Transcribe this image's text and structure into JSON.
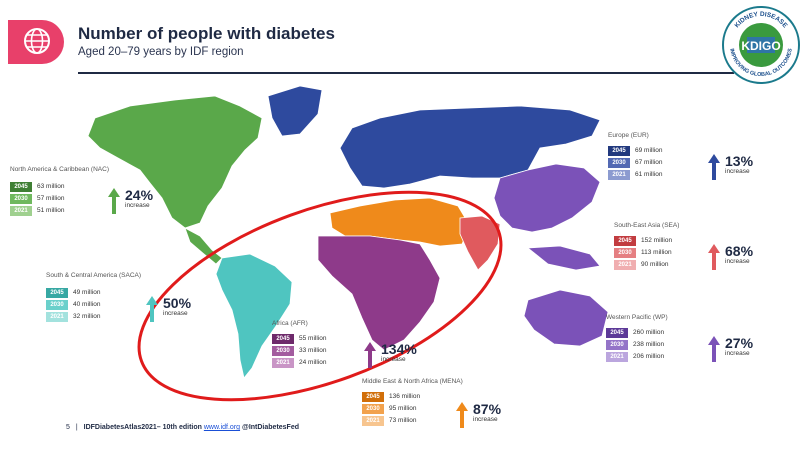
{
  "header": {
    "title": "Number of people with diabetes",
    "subtitle": "Aged 20–79 years by IDF region"
  },
  "logo": {
    "text_top": "KIDNEY DISEASE",
    "text_center": "KDIGO",
    "text_bottom": "IMPROVING GLOBAL OUTCOMES"
  },
  "regions": {
    "nac": {
      "title": "North America & Caribbean (NAC)",
      "rows": [
        [
          "2045",
          "63 million"
        ],
        [
          "2030",
          "57 million"
        ],
        [
          "2021",
          "51 million"
        ]
      ],
      "pct": "24%",
      "inc": "increase",
      "color": "#5aa84a"
    },
    "saca": {
      "title": "South & Central America (SACA)",
      "rows": [
        [
          "2045",
          "49 million"
        ],
        [
          "2030",
          "40 million"
        ],
        [
          "2021",
          "32 million"
        ]
      ],
      "pct": "50%",
      "inc": "increase",
      "color": "#4fc5c0"
    },
    "afr": {
      "title": "Africa (AFR)",
      "rows": [
        [
          "2045",
          "55 million"
        ],
        [
          "2030",
          "33 million"
        ],
        [
          "2021",
          "24 million"
        ]
      ],
      "pct": "134%",
      "inc": "increase",
      "color": "#8e3a8a"
    },
    "mena": {
      "title": "Middle East & North Africa (MENA)",
      "rows": [
        [
          "2045",
          "136 million"
        ],
        [
          "2030",
          "95 million"
        ],
        [
          "2021",
          "73 million"
        ]
      ],
      "pct": "87%",
      "inc": "increase",
      "color": "#ef8a1b"
    },
    "eur": {
      "title": "Europe (EUR)",
      "rows": [
        [
          "2045",
          "69 million"
        ],
        [
          "2030",
          "67 million"
        ],
        [
          "2021",
          "61 million"
        ]
      ],
      "pct": "13%",
      "inc": "increase",
      "color": "#2e4a9e"
    },
    "sea": {
      "title": "South-East Asia (SEA)",
      "rows": [
        [
          "2045",
          "152 million"
        ],
        [
          "2030",
          "113 million"
        ],
        [
          "2021",
          "90 million"
        ]
      ],
      "pct": "68%",
      "inc": "increase",
      "color": "#e05a5e"
    },
    "wp": {
      "title": "Western Pacific (WP)",
      "rows": [
        [
          "2045",
          "260 million"
        ],
        [
          "2030",
          "238 million"
        ],
        [
          "2021",
          "206 million"
        ]
      ],
      "pct": "27%",
      "inc": "increase",
      "color": "#7b52b8"
    }
  },
  "footer": {
    "page": "5",
    "sep": "|",
    "text": "IDFDiabetesAtlas2021– 10th edition",
    "link": "www.idf.org",
    "handle": "@IntDiabetesFed"
  }
}
